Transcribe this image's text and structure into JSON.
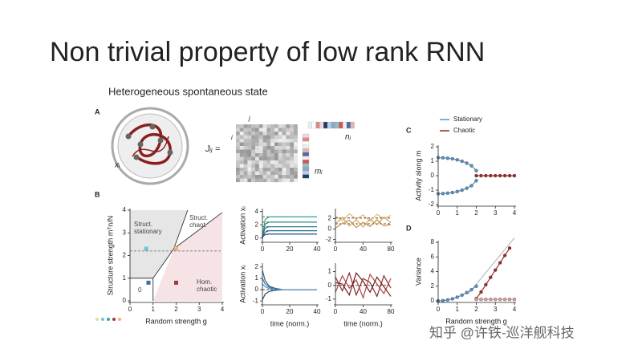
{
  "title": "Non trivial property of low rank RNN",
  "subtitle": "Heterogeneous  spontaneous state",
  "watermark": "知乎 @许铁-巡洋舰科技",
  "panel_a": {
    "label": "A",
    "node_label": "xᵢ",
    "matrix_label": "Jᵢⱼ =",
    "col_index": "j",
    "row_index": "i",
    "plus": "+",
    "n_label": "nⱼ",
    "m_label": "mᵢ"
  },
  "chart_data": [
    {
      "type": "phase",
      "panel": "B",
      "xlabel": "Random strength g",
      "ylabel": "Structure strength mᵀn/N",
      "xlim": [
        0,
        4
      ],
      "ylim": [
        0,
        4
      ],
      "xticks": [
        0,
        1,
        2,
        3,
        4
      ],
      "yticks": [
        0,
        1,
        2,
        3,
        4
      ],
      "regions": [
        {
          "name": "Struct. stationary",
          "color": "#e6e6e6",
          "x": [
            0,
            1,
            1,
            1.9,
            2.5,
            0
          ],
          "y": [
            1,
            1,
            1,
            2.3,
            4,
            4
          ]
        },
        {
          "name": "Struct. chaot.",
          "color": "#ffffff",
          "x": [
            1.9,
            2.5,
            4,
            4
          ],
          "y": [
            2.3,
            4,
            4,
            3.9
          ]
        },
        {
          "name": "Hom. chaotic",
          "color": "#f6e3e6",
          "x": [
            1,
            4,
            4,
            1.9
          ],
          "y": [
            0,
            0,
            3.9,
            2.3
          ]
        },
        {
          "name": "0",
          "color": "#ffffff",
          "x": [
            0,
            1,
            1,
            0
          ],
          "y": [
            0,
            0,
            1,
            1
          ]
        }
      ],
      "boundaries": [
        {
          "x": [
            1,
            1.9,
            2.5
          ],
          "y": [
            1,
            2.3,
            4
          ]
        },
        {
          "x": [
            1.9,
            4
          ],
          "y": [
            2.3,
            3.9
          ]
        },
        {
          "x": [
            0,
            1,
            1
          ],
          "y": [
            1,
            1,
            0
          ]
        }
      ],
      "dashed_level": 2.2,
      "points": {
        "x": [
          0.7,
          2.0,
          0.8,
          2.0
        ],
        "y": [
          2.3,
          2.3,
          0.8,
          0.8
        ],
        "colors": [
          "#6cc6d6",
          "#f2b36b",
          "#3d6fa0",
          "#a33b3b"
        ]
      }
    },
    {
      "type": "line",
      "ylabel": "Activation xᵢ",
      "xlim": [
        0,
        40
      ],
      "ylim": [
        -0.4,
        4.2
      ],
      "xticks": [
        0,
        20,
        40
      ],
      "yticks": [
        0,
        2,
        4
      ],
      "x": [
        0,
        2,
        5,
        10,
        15,
        20,
        25,
        30,
        35,
        40
      ],
      "levels": [
        3.2,
        2.4,
        1.7,
        1.1,
        0.6
      ],
      "series": [
        {
          "color": "#3aa889",
          "values": [
            0.2,
            2.8,
            3.2,
            3.2,
            3.2,
            3.2,
            3.2,
            3.2,
            3.2,
            3.2
          ]
        },
        {
          "color": "#2c8a8a",
          "values": [
            0.1,
            2.1,
            2.4,
            2.4,
            2.4,
            2.4,
            2.4,
            2.4,
            2.4,
            2.4
          ]
        },
        {
          "color": "#2f7d9a",
          "values": [
            0.3,
            1.5,
            1.7,
            1.7,
            1.7,
            1.7,
            1.7,
            1.7,
            1.7,
            1.7
          ]
        },
        {
          "color": "#2b6a8f",
          "values": [
            0.0,
            0.9,
            1.1,
            1.1,
            1.1,
            1.1,
            1.1,
            1.1,
            1.1,
            1.1
          ]
        },
        {
          "color": "#255b80",
          "values": [
            0.2,
            0.5,
            0.6,
            0.6,
            0.6,
            0.6,
            0.6,
            0.6,
            0.6,
            0.6
          ]
        }
      ]
    },
    {
      "type": "line",
      "xlim": [
        0,
        80
      ],
      "ylim": [
        -2.2,
        3.6
      ],
      "xticks": [
        0,
        40,
        80
      ],
      "yticks": [
        -2,
        0,
        2
      ],
      "x": [
        0,
        10,
        20,
        30,
        40,
        50,
        60,
        70,
        80
      ],
      "levels": [
        2.1,
        1.0
      ],
      "series": [
        {
          "color": "#e9b96e",
          "values": [
            2.5,
            1.6,
            2.9,
            1.9,
            2.7,
            1.5,
            2.8,
            2.0,
            2.6
          ]
        },
        {
          "color": "#d9a25a",
          "values": [
            1.0,
            2.2,
            0.6,
            1.8,
            0.4,
            1.9,
            0.8,
            2.3,
            1.2
          ]
        },
        {
          "color": "#c98a48",
          "values": [
            0.2,
            1.1,
            1.7,
            0.3,
            1.3,
            0.5,
            1.8,
            0.6,
            0.9
          ]
        }
      ]
    },
    {
      "type": "line",
      "ylabel": "Activation xᵢ",
      "xlabel": "time (norm.)",
      "xlim": [
        0,
        40
      ],
      "ylim": [
        -1.2,
        2.2
      ],
      "xticks": [
        0,
        20,
        40
      ],
      "yticks": [
        -1,
        0,
        1,
        2
      ],
      "x": [
        0,
        2,
        5,
        10,
        15,
        20,
        25,
        30,
        35,
        40
      ],
      "levels": [
        0
      ],
      "series": [
        {
          "color": "#2b5d8a",
          "values": [
            1.7,
            0.8,
            0.3,
            0.1,
            0,
            0,
            0,
            0,
            0,
            0
          ]
        },
        {
          "color": "#3f78a8",
          "values": [
            1.0,
            0.5,
            0.2,
            0.05,
            0,
            0,
            0,
            0,
            0,
            0
          ]
        },
        {
          "color": "#1f4a70",
          "values": [
            -0.9,
            -0.4,
            -0.15,
            -0.05,
            0,
            0,
            0,
            0,
            0,
            0
          ]
        },
        {
          "color": "#5a90bd",
          "values": [
            0.5,
            0.25,
            0.1,
            0.02,
            0,
            0,
            0,
            0,
            0,
            0
          ]
        }
      ]
    },
    {
      "type": "line",
      "xlabel": "time (norm.)",
      "xlim": [
        0,
        80
      ],
      "ylim": [
        -1.3,
        1.5
      ],
      "xticks": [
        0,
        40,
        80
      ],
      "yticks": [
        -1,
        0,
        1
      ],
      "x": [
        0,
        10,
        20,
        30,
        40,
        50,
        60,
        70,
        80
      ],
      "levels": [
        0
      ],
      "series": [
        {
          "color": "#8b2b2b",
          "values": [
            0.6,
            -0.4,
            0.9,
            -0.7,
            0.5,
            0.2,
            -0.8,
            0.7,
            -0.2
          ]
        },
        {
          "color": "#b04848",
          "values": [
            -0.5,
            0.7,
            -0.2,
            0.4,
            -0.9,
            0.8,
            0.1,
            -0.6,
            0.5
          ]
        },
        {
          "color": "#6e1e1e",
          "values": [
            0.2,
            0.1,
            -0.7,
            0.9,
            0.3,
            -0.5,
            0.6,
            -0.1,
            -0.8
          ]
        }
      ]
    },
    {
      "type": "line",
      "panel": "C",
      "ylabel": "Activity along m",
      "xlim": [
        0,
        4
      ],
      "ylim": [
        -2,
        2
      ],
      "xticks": [
        0,
        1,
        2,
        3,
        4
      ],
      "yticks": [
        -2,
        -1,
        0,
        1,
        2
      ],
      "legend": "top-right",
      "series": [
        {
          "name": "Stationary",
          "color": "#5a8fc0",
          "markers": true,
          "x": [
            0,
            0.25,
            0.5,
            0.75,
            1.0,
            1.25,
            1.5,
            1.75,
            2.0
          ],
          "values": [
            1.25,
            1.24,
            1.21,
            1.17,
            1.1,
            1.0,
            0.87,
            0.69,
            0.35
          ]
        },
        {
          "color": "#5a8fc0",
          "markers": true,
          "x": [
            0,
            0.25,
            0.5,
            0.75,
            1.0,
            1.25,
            1.5,
            1.75,
            2.0
          ],
          "values": [
            -1.25,
            -1.24,
            -1.21,
            -1.17,
            -1.1,
            -1.0,
            -0.87,
            -0.69,
            -0.35
          ]
        },
        {
          "name": "Chaotic",
          "color": "#a02626",
          "markers": true,
          "x": [
            2.0,
            2.25,
            2.5,
            2.75,
            3.0,
            3.25,
            3.5,
            3.75,
            4.0
          ],
          "values": [
            0,
            0,
            0,
            0,
            0,
            0,
            0,
            0,
            0
          ]
        }
      ]
    },
    {
      "type": "line",
      "panel": "D",
      "ylabel": "Variance",
      "xlabel": "Random strength g",
      "xlim": [
        0,
        4
      ],
      "ylim": [
        0,
        8
      ],
      "xticks": [
        0,
        1,
        2,
        3,
        4
      ],
      "yticks": [
        0,
        2,
        4,
        6,
        8
      ],
      "series": [
        {
          "color": "#bbbbbb",
          "x": [
            1.6,
            4.0
          ],
          "values": [
            1.0,
            8.6
          ]
        },
        {
          "color": "#5a8fc0",
          "markers": true,
          "x": [
            0,
            0.25,
            0.5,
            0.75,
            1.0,
            1.25,
            1.5,
            1.75,
            2.0
          ],
          "values": [
            0,
            0.03,
            0.12,
            0.28,
            0.5,
            0.78,
            1.12,
            1.53,
            2.0
          ]
        },
        {
          "color": "#a02626",
          "markers": true,
          "x": [
            2.0,
            2.25,
            2.5,
            2.75,
            3.0,
            3.25,
            3.5,
            3.75
          ],
          "values": [
            0.3,
            1.2,
            2.2,
            3.2,
            4.2,
            5.2,
            6.2,
            7.2
          ]
        },
        {
          "color": "#d9a0a0",
          "markers": true,
          "x": [
            2.0,
            2.25,
            2.5,
            2.75,
            3.0,
            3.25,
            3.5,
            3.75,
            4.0
          ],
          "values": [
            0.2,
            0.2,
            0.2,
            0.2,
            0.2,
            0.2,
            0.2,
            0.2,
            0.2
          ]
        }
      ]
    }
  ]
}
